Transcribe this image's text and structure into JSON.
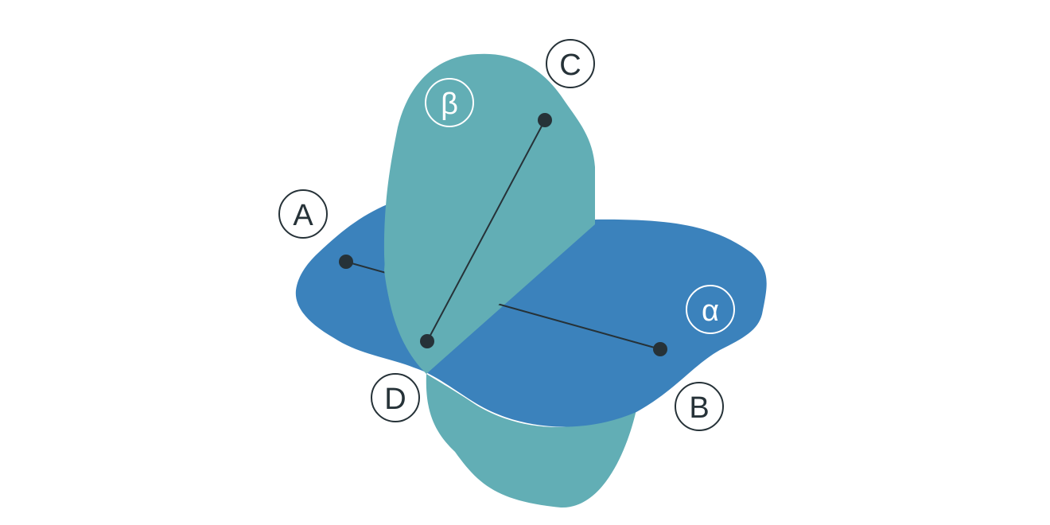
{
  "colors": {
    "plane_alpha": "#3b82bc",
    "plane_beta": "#62aeb5",
    "ink": "#263238",
    "background": "#ffffff",
    "label_on_plane": "#ffffff"
  },
  "planes": {
    "alpha": {
      "label": "α"
    },
    "beta": {
      "label": "β"
    }
  },
  "points": {
    "A": {
      "label": "A"
    },
    "B": {
      "label": "B"
    },
    "C": {
      "label": "C"
    },
    "D": {
      "label": "D"
    }
  }
}
